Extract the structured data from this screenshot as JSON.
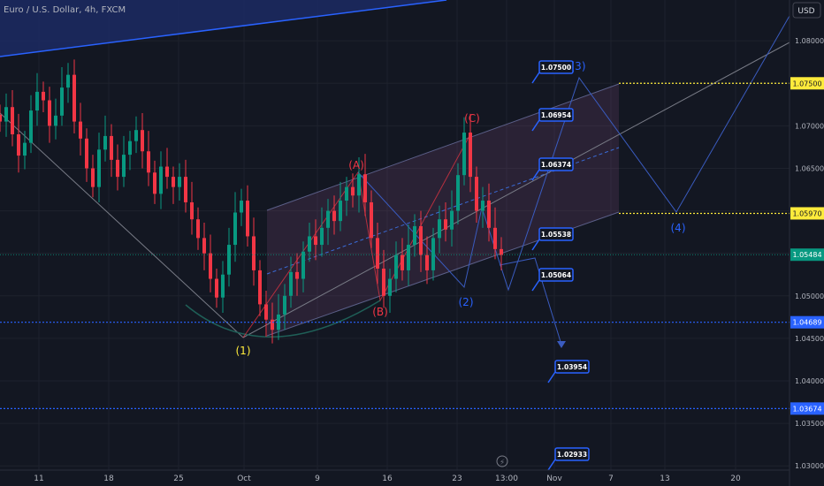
{
  "header": {
    "symbol_title": "Euro / U.S. Dollar, 4h, FXCM"
  },
  "currency_button": "USD",
  "chart_data": {
    "type": "candlestick",
    "title": "Euro / U.S. Dollar, 4h, FXCM",
    "x_ticks": [
      "11",
      "18",
      "25",
      "Oct",
      "9",
      "16",
      "23",
      "13:00",
      "Nov",
      "7",
      "13",
      "20"
    ],
    "y_ticks": [
      "1.08000",
      "1.07500",
      "1.07000",
      "1.06500",
      "1.06000",
      "1.05500",
      "1.05000",
      "1.04500",
      "1.04000",
      "1.03500",
      "1.03000"
    ],
    "ylim": [
      1.0295,
      1.0848
    ],
    "price_tags": [
      {
        "label": "1.07500",
        "value": 1.075,
        "color": "#ffeb3b"
      },
      {
        "label": "1.05970",
        "value": 1.0597,
        "color": "#ffeb3b"
      },
      {
        "label": "1.05484",
        "value": 1.05484,
        "color": "#089981"
      },
      {
        "label": "1.04689",
        "value": 1.04689,
        "color": "#2962ff"
      },
      {
        "label": "1.03674",
        "value": 1.03674,
        "color": "#2962ff"
      }
    ],
    "target_labels": [
      "1.07500",
      "1.06954",
      "1.06374",
      "1.05538",
      "1.05064",
      "1.03954",
      "1.02933"
    ],
    "wave_labels": [
      "(1)",
      "(A)",
      "(B)",
      "(C)",
      "(2)",
      "(3)",
      "(4)"
    ],
    "series": [
      {
        "name": "",
        "close": [
          1.0705,
          1.0722,
          1.069,
          1.0665,
          1.068,
          1.0718,
          1.074,
          1.073,
          1.07,
          1.0712,
          1.0745,
          1.076,
          1.0705,
          1.0685,
          1.065,
          1.0628,
          1.0672,
          1.0688,
          1.066,
          1.064,
          1.0666,
          1.0682,
          1.0695,
          1.067,
          1.0645,
          1.062,
          1.0652,
          1.064,
          1.0628,
          1.064,
          1.061,
          1.059,
          1.0568,
          1.055,
          1.052,
          1.0498,
          1.0525,
          1.056,
          1.0598,
          1.0612,
          1.057,
          1.053,
          1.049,
          1.0472,
          1.046,
          1.0478,
          1.05,
          1.0528,
          1.052,
          1.0552,
          1.057,
          1.056,
          1.058,
          1.06,
          1.0588,
          1.0612,
          1.0628,
          1.0618,
          1.0643,
          1.061,
          1.0568,
          1.0532,
          1.05,
          1.052,
          1.0548,
          1.053,
          1.056,
          1.0582,
          1.0548,
          1.053,
          1.0568,
          1.059,
          1.0578,
          1.06,
          1.0642,
          1.0692,
          1.064,
          1.06,
          1.0612,
          1.058,
          1.0555,
          1.0548
        ]
      }
    ]
  }
}
